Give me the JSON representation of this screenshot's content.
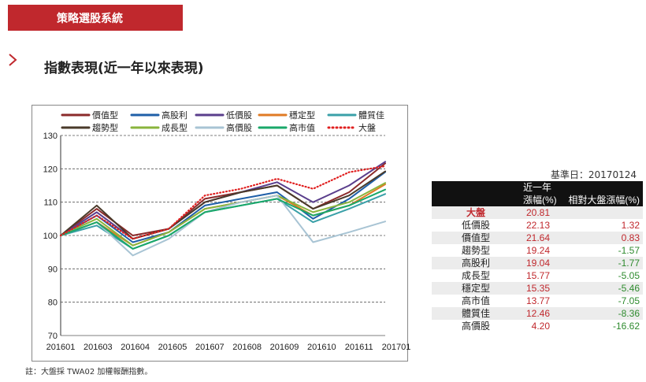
{
  "banner": {
    "label": "策略選股系統"
  },
  "section": {
    "title": "指數表現(近一年以來表現)",
    "icon": "chevron-right-icon"
  },
  "colors": {
    "brand_red": "#c0282d",
    "negative_green": "#2e8b2e"
  },
  "chart_data": {
    "type": "line",
    "x": [
      "201601",
      "201603",
      "201604",
      "201605",
      "201607",
      "201608",
      "201609",
      "201610",
      "201611",
      "201701"
    ],
    "ylim": [
      70,
      130
    ],
    "yticks": [
      70,
      80,
      90,
      100,
      110,
      120,
      130
    ],
    "grid": true,
    "legend_position": "top",
    "series": [
      {
        "name": "價值型",
        "color": "#8b2a2a",
        "style": "solid",
        "values": [
          100,
          108,
          100,
          102,
          111,
          113,
          115,
          108,
          113,
          121.64
        ]
      },
      {
        "name": "高股利",
        "color": "#1f5fa8",
        "style": "solid",
        "values": [
          100,
          106,
          98,
          101,
          109,
          111,
          113,
          105,
          111,
          119.04
        ]
      },
      {
        "name": "低價股",
        "color": "#5a3e8c",
        "style": "solid",
        "values": [
          100,
          107,
          99,
          102,
          110,
          113,
          116,
          110,
          115,
          122.13
        ]
      },
      {
        "name": "穩定型",
        "color": "#e07b24",
        "style": "solid",
        "values": [
          100,
          104,
          97,
          101,
          108,
          110,
          112,
          106,
          109,
          115.35
        ]
      },
      {
        "name": "體質佳",
        "color": "#3aa0a8",
        "style": "solid",
        "values": [
          100,
          103,
          96,
          100,
          107,
          109,
          111,
          104,
          108,
          112.46
        ]
      },
      {
        "name": "趨勢型",
        "color": "#4a3a2a",
        "style": "solid",
        "values": [
          100,
          109,
          99,
          102,
          110,
          113,
          115,
          108,
          112,
          119.24
        ]
      },
      {
        "name": "成長型",
        "color": "#8ab43c",
        "style": "solid",
        "values": [
          100,
          105,
          97,
          101,
          108,
          110,
          112,
          107,
          110,
          115.77
        ]
      },
      {
        "name": "高價股",
        "color": "#a8c4d4",
        "style": "solid",
        "values": [
          100,
          104,
          94,
          99,
          107,
          110,
          112,
          98,
          101,
          104.2
        ]
      },
      {
        "name": "高市值",
        "color": "#1aa86a",
        "style": "solid",
        "values": [
          100,
          104,
          96,
          100,
          107,
          109,
          111,
          106,
          109,
          113.77
        ]
      },
      {
        "name": "大盤",
        "color": "#e02020",
        "style": "dotted",
        "values": [
          100,
          106,
          99,
          102,
          112,
          114,
          117,
          114,
          119,
          120.81
        ]
      }
    ]
  },
  "note": "註：大盤採 TWA02 加權報酬指數。",
  "table": {
    "base_date": "基準日：20170124",
    "header_top": [
      "",
      "近一年",
      ""
    ],
    "header_bottom": [
      "",
      "漲幅(%)",
      "相對大盤漲幅(%)"
    ],
    "rows": [
      {
        "name": "大盤",
        "ret": "20.81",
        "rel": ""
      },
      {
        "name": "低價股",
        "ret": "22.13",
        "rel": "1.32"
      },
      {
        "name": "價值型",
        "ret": "21.64",
        "rel": "0.83"
      },
      {
        "name": "趨勢型",
        "ret": "19.24",
        "rel": "-1.57"
      },
      {
        "name": "高股利",
        "ret": "19.04",
        "rel": "-1.77"
      },
      {
        "name": "成長型",
        "ret": "15.77",
        "rel": "-5.05"
      },
      {
        "name": "穩定型",
        "ret": "15.35",
        "rel": "-5.46"
      },
      {
        "name": "高市值",
        "ret": "13.77",
        "rel": "-7.05"
      },
      {
        "name": "體質佳",
        "ret": "12.46",
        "rel": "-8.36"
      },
      {
        "name": "高價股",
        "ret": "4.20",
        "rel": "-16.62"
      }
    ]
  }
}
